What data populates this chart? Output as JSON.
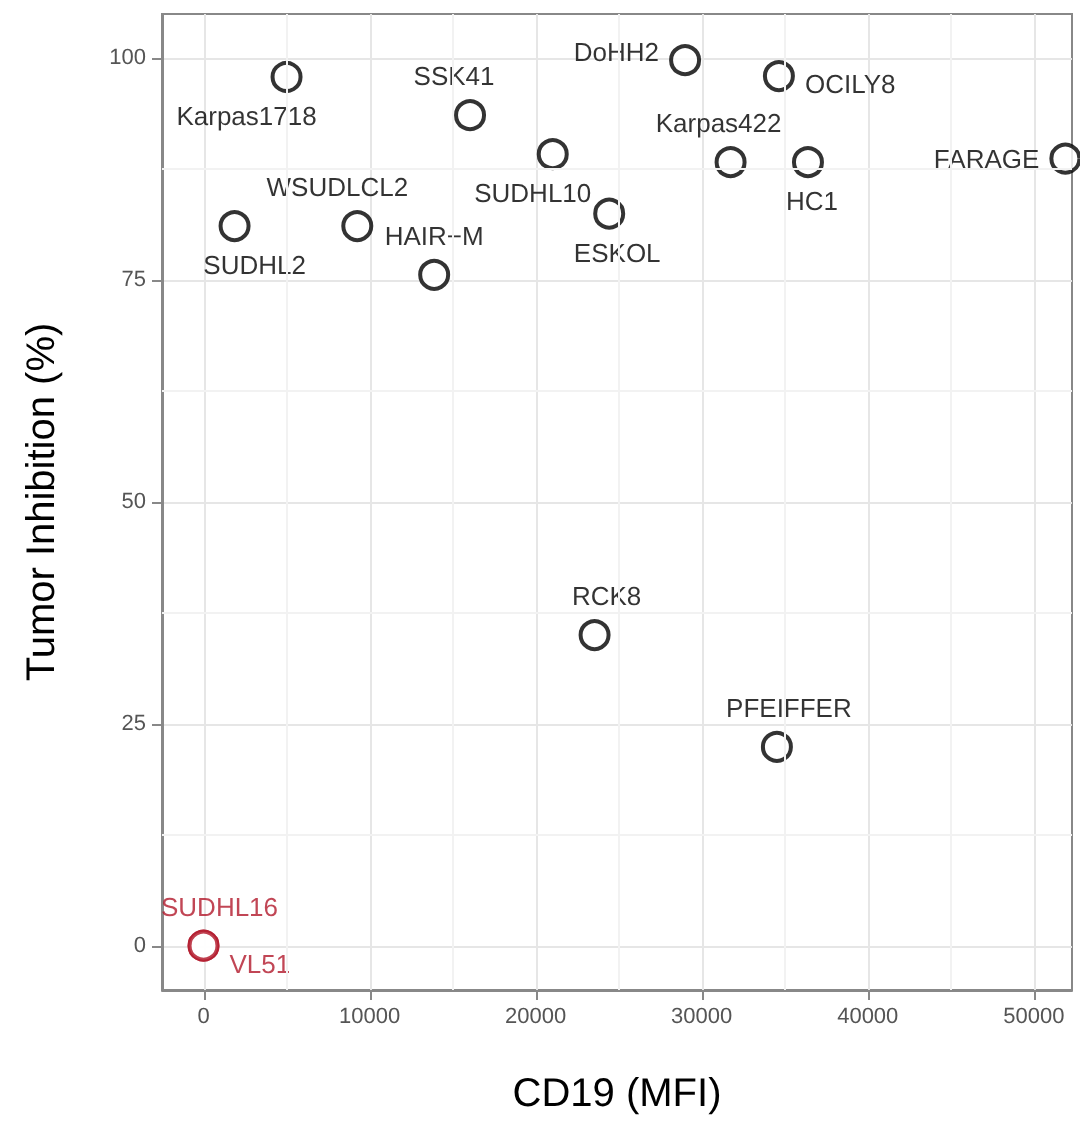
{
  "chart_data": {
    "type": "scatter",
    "xlabel": "CD19 (MFI)",
    "ylabel": "Tumor Inhibition (%)",
    "x": [
      5000,
      29000,
      34650,
      16050,
      21030,
      31740,
      36400,
      51900,
      24430,
      1870,
      9260,
      13890,
      23550,
      34530,
      0,
      0
    ],
    "values": [
      97.9,
      99.8,
      98.0,
      93.6,
      89.2,
      88.3,
      88.3,
      88.7,
      82.5,
      81.1,
      81.1,
      75.6,
      35.0,
      22.4,
      0,
      0
    ],
    "value_labels": [
      "Karpas1718",
      "DoHH2",
      "OCILY8",
      "SSK41",
      "SUDHL10",
      "Karpas422",
      "HC1",
      "FARAGE",
      "ESKOL",
      "SUDHL2",
      "WSUDLCL2",
      "HAIR−M",
      "RCK8",
      "PFEIFFER",
      "SUDHL16",
      "VL51"
    ],
    "colors": [
      "#000000",
      "#000000",
      "#000000",
      "#000000",
      "#000000",
      "#000000",
      "#000000",
      "#000000",
      "#000000",
      "#000000",
      "#000000",
      "#000000",
      "#000000",
      "#000000",
      "#b2182b",
      "#b2182b"
    ],
    "marker": "circle",
    "grid": true,
    "xlim": [
      -2500,
      52300
    ],
    "xticks": [
      0,
      10000,
      20000,
      30000,
      40000,
      50000
    ],
    "ylim": [
      -5,
      105
    ],
    "yticks": [
      0,
      25,
      50,
      75,
      100
    ]
  }
}
